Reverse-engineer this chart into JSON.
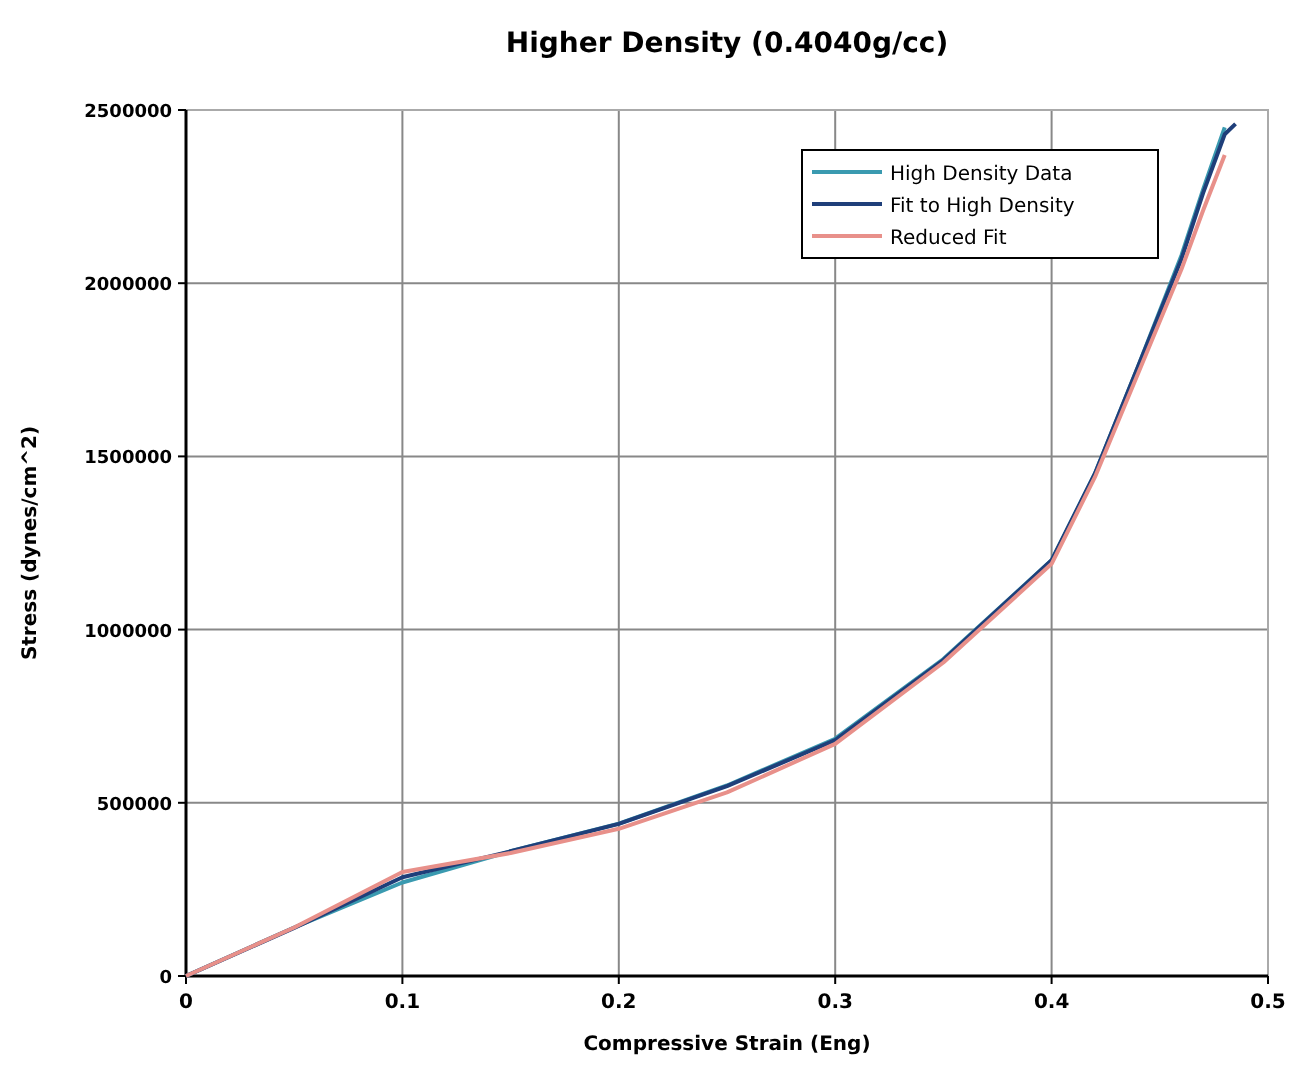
{
  "chart_data": {
    "type": "line",
    "title": "Higher Density (0.4040g/cc)",
    "xlabel": "Compressive Strain (Eng)",
    "ylabel": "Stress (dynes/cm^2)",
    "xlim": [
      0,
      0.5
    ],
    "xticks": [
      0,
      0.1,
      0.2,
      0.3,
      0.4,
      0.5
    ],
    "ylim": [
      0,
      2500000
    ],
    "yticks": [
      0,
      500000,
      1000000,
      1500000,
      2000000,
      2500000
    ],
    "grid": true,
    "legend": "top right",
    "marker": "none",
    "line_style": "solid",
    "series": [
      {
        "name": "High Density Data",
        "color": "#3a9ab0",
        "x": [
          0,
          0.05,
          0.1,
          0.15,
          0.2,
          0.25,
          0.3,
          0.35,
          0.4,
          0.42,
          0.44,
          0.46,
          0.47,
          0.48
        ],
        "values": [
          0,
          140000,
          270000,
          360000,
          440000,
          550000,
          685000,
          915000,
          1200000,
          1450000,
          1760000,
          2080000,
          2270000,
          2450000
        ]
      },
      {
        "name": "Fit to High Density",
        "color": "#1f3f7a",
        "x": [
          0,
          0.05,
          0.1,
          0.15,
          0.2,
          0.25,
          0.3,
          0.35,
          0.4,
          0.42,
          0.44,
          0.46,
          0.47,
          0.48,
          0.485
        ],
        "values": [
          0,
          139000,
          285000,
          360000,
          439000,
          548000,
          681000,
          912000,
          1200000,
          1450000,
          1760000,
          2070000,
          2260000,
          2430000,
          2460000
        ]
      },
      {
        "name": "Reduced Fit",
        "color": "#e8908a",
        "x": [
          0,
          0.05,
          0.1,
          0.15,
          0.2,
          0.25,
          0.3,
          0.35,
          0.4,
          0.42,
          0.44,
          0.46,
          0.47,
          0.48
        ],
        "values": [
          0,
          140000,
          300000,
          355000,
          425000,
          530000,
          670000,
          905000,
          1190000,
          1440000,
          1740000,
          2040000,
          2210000,
          2370000
        ]
      }
    ]
  }
}
